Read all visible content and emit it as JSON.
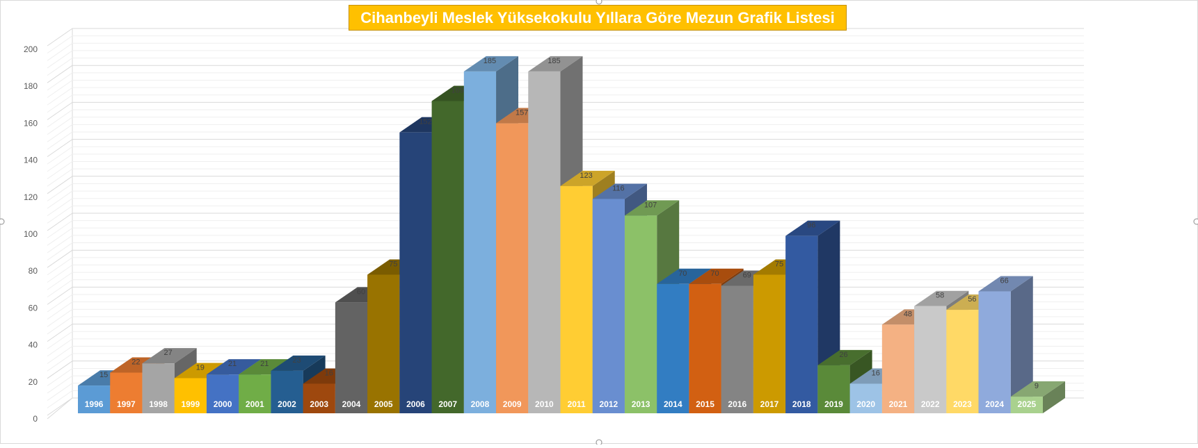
{
  "chart_data": {
    "type": "bar",
    "style": "3d-column",
    "title": "Cihanbeyli Meslek Yüksekokulu Yıllara Göre Mezun Grafik Listesi",
    "title_background": "#ffc000",
    "title_color": "#ffffff",
    "xlabel": "",
    "ylabel": "",
    "ylim": [
      0,
      200
    ],
    "y_ticks": [
      0,
      20,
      40,
      60,
      80,
      100,
      120,
      140,
      160,
      180,
      200
    ],
    "grid": true,
    "legend": "none",
    "categories": [
      "1996",
      "1997",
      "1998",
      "1999",
      "2000",
      "2001",
      "2002",
      "2003",
      "2004",
      "2005",
      "2006",
      "2007",
      "2008",
      "2009",
      "2010",
      "2011",
      "2012",
      "2013",
      "2014",
      "2015",
      "2016",
      "2017",
      "2018",
      "2019",
      "2020",
      "2021",
      "2022",
      "2023",
      "2024",
      "2025"
    ],
    "values": [
      15,
      22,
      27,
      19,
      21,
      21,
      23,
      16,
      60,
      75,
      152,
      169,
      185,
      157,
      185,
      123,
      116,
      107,
      70,
      70,
      69,
      75,
      96,
      26,
      16,
      48,
      58,
      56,
      66,
      9
    ],
    "colors": [
      "#5b9bd5",
      "#ed7d31",
      "#a5a5a5",
      "#ffc000",
      "#4472c4",
      "#70ad47",
      "#255e91",
      "#9e480e",
      "#636363",
      "#997300",
      "#264478",
      "#43682b",
      "#7cafdd",
      "#f1975a",
      "#b7b7b7",
      "#ffcd33",
      "#698ed0",
      "#8cc168",
      "#327dc2",
      "#d26012",
      "#848484",
      "#cc9a00",
      "#335aa1",
      "#5a8a39",
      "#9dc3e6",
      "#f4b183",
      "#c9c9c9",
      "#ffd966",
      "#8faadc",
      "#a9d18e"
    ]
  }
}
